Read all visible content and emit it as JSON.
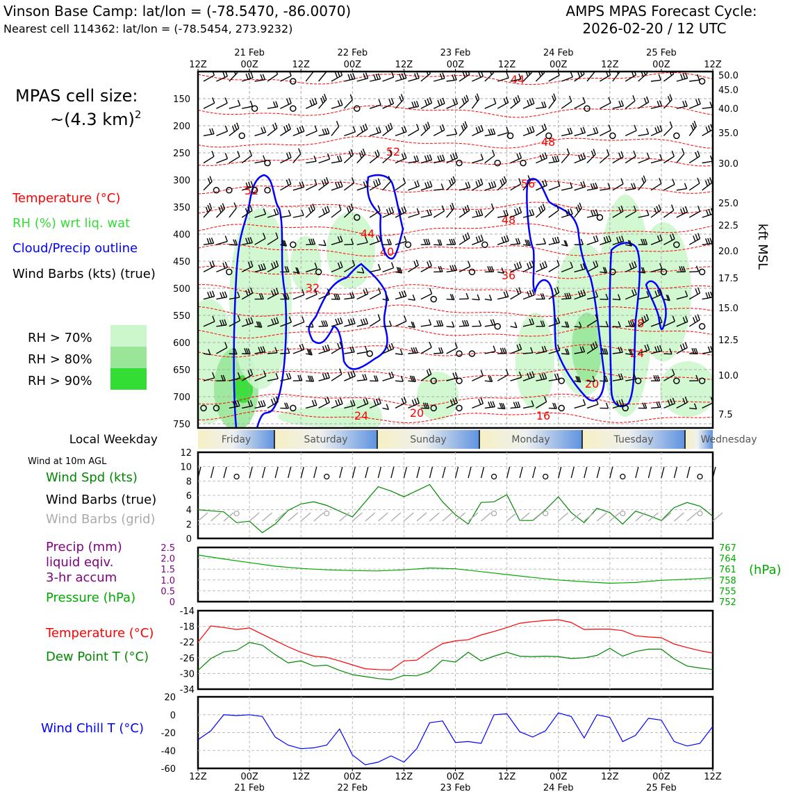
{
  "header": {
    "title_left": "Vinson Base Camp: lat/lon = (-78.5470, -86.0070)",
    "subtitle_left": "Nearest cell 114362: lat/lon = (-78.5454, 273.9232)",
    "title_right_1": "AMPS MPAS Forecast Cycle:",
    "title_right_2": "2026-02-20 / 12 UTC"
  },
  "time_axis": {
    "top_labels": [
      "12Z",
      "21 Feb\n00Z",
      "12Z",
      "22 Feb\n00Z",
      "12Z",
      "23 Feb\n00Z",
      "12Z",
      "24 Feb\n00Z",
      "12Z",
      "25 Feb\n00Z",
      "12Z"
    ],
    "bottom_labels": [
      "12Z",
      "00Z\n21 Feb",
      "12Z",
      "00Z\n22 Feb",
      "12Z",
      "00Z\n23 Feb",
      "12Z",
      "00Z\n24 Feb",
      "12Z",
      "00Z\n25 Feb",
      "12Z"
    ]
  },
  "legend": {
    "cell_size_line1": "MPAS cell size:",
    "cell_size_line2": "~(4.3 km)",
    "cell_size_sup": "2",
    "temperature": "Temperature (°C)",
    "rh": "RH (%) wrt liq. wat",
    "cloud": "Cloud/Precip outline",
    "wind": "Wind Barbs (kts) (true)",
    "rh70": "RH > 70%",
    "rh80": "RH > 80%",
    "rh90": "RH > 90%",
    "colors": {
      "temp": "#ff0000",
      "rh": "#33cc33",
      "cloud": "#0000ff",
      "rh70": "#ccf7cc",
      "rh80": "#99e699",
      "rh90": "#33dd33"
    }
  },
  "weekday_strip": {
    "label": "Local Weekday",
    "days": [
      "Friday",
      "Saturday",
      "Sunday",
      "Monday",
      "Tuesday",
      "Wednesday"
    ]
  },
  "surface_labels": {
    "wind10m": "Wind at 10m AGL",
    "wind_spd": "Wind Spd (kts)",
    "barbs_true": "Wind Barbs (true)",
    "barbs_grid": "Wind Barbs (grid)",
    "precip1": "Precip (mm)",
    "precip2": "liquid eqiv.",
    "precip3": "3-hr accum",
    "pressure": "Pressure (hPa)",
    "pressure_unit": "(hPa)",
    "temperature": "Temperature (°C)",
    "dewpoint": "Dew Point T (°C)",
    "windchill": "Wind Chill T (°C)"
  },
  "chart_data": [
    {
      "type": "heatmap",
      "name": "cross-section",
      "y_left_label": "hPa",
      "y_left_ticks": [
        "150",
        "200",
        "250",
        "300",
        "350",
        "400",
        "450",
        "500",
        "550",
        "600",
        "650",
        "700",
        "750"
      ],
      "y_right_label": "kft MSL",
      "y_right_ticks": [
        "50.0",
        "45.0",
        "40.0",
        "35.0",
        "30.0",
        "25.0",
        "22.5",
        "20.0",
        "17.5",
        "15.0",
        "12.5",
        "10.0",
        "7.5"
      ],
      "temperature_contour_labels": [
        "44",
        "48",
        "52",
        "52",
        "56",
        "48",
        "44",
        "40",
        "36",
        "32",
        "28",
        "24",
        "20",
        "24",
        "20",
        "16"
      ]
    },
    {
      "type": "line",
      "name": "wind-speed",
      "ylim": [
        0,
        12
      ],
      "y_ticks": [
        "0",
        "2",
        "4",
        "6",
        "8",
        "10",
        "12"
      ],
      "x_hours": [
        0,
        6,
        9,
        12,
        15,
        18,
        21,
        24,
        27,
        30,
        36,
        42,
        45,
        48,
        54,
        57,
        60,
        63,
        66,
        69,
        72,
        75,
        78,
        81,
        84,
        87,
        90,
        93,
        96,
        99,
        102,
        105,
        108,
        111,
        114,
        117,
        120
      ],
      "values": [
        4.0,
        3.7,
        2.2,
        2.4,
        0.8,
        2.0,
        3.9,
        4.8,
        5.1,
        4.6,
        3.0,
        7.2,
        6.6,
        5.8,
        7.5,
        5.1,
        3.3,
        2.0,
        5.0,
        5.1,
        6.1,
        2.5,
        2.5,
        4.0,
        5.8,
        3.6,
        2.2,
        4.2,
        3.6,
        2.0,
        3.8,
        3.2,
        2.5,
        4.3,
        5.0,
        4.5,
        3.1
      ]
    },
    {
      "type": "line",
      "name": "pressure",
      "ylim": [
        752,
        767
      ],
      "y_ticks_right": [
        "767",
        "764",
        "761",
        "758",
        "755",
        "752"
      ],
      "precip_ticks": [
        "2.5",
        "2.0",
        "1.5",
        "1.0",
        "0.5",
        "0"
      ],
      "x_hours": [
        0,
        6,
        12,
        18,
        24,
        30,
        36,
        42,
        48,
        54,
        60,
        66,
        72,
        78,
        84,
        90,
        96,
        102,
        108,
        114,
        120
      ],
      "values": [
        764.9,
        763.8,
        762.8,
        761.8,
        761.2,
        760.8,
        760.6,
        760.5,
        760.8,
        761.3,
        761.1,
        760.3,
        759.5,
        758.7,
        758.0,
        757.5,
        757.1,
        757.3,
        757.9,
        758.2,
        758.6
      ]
    },
    {
      "type": "line",
      "name": "temperature-dewpoint",
      "ylim": [
        -34,
        -14
      ],
      "y_ticks": [
        "-14",
        "-18",
        "-22",
        "-26",
        "-30",
        "-34"
      ],
      "x_hours": [
        0,
        3,
        6,
        9,
        12,
        15,
        18,
        21,
        24,
        27,
        30,
        33,
        36,
        39,
        42,
        45,
        48,
        51,
        54,
        57,
        60,
        63,
        66,
        69,
        72,
        75,
        78,
        81,
        84,
        87,
        90,
        93,
        96,
        99,
        102,
        105,
        108,
        111,
        114,
        117,
        120
      ],
      "series": [
        {
          "name": "Temperature (°C)",
          "color": "#ff0000",
          "values": [
            -22.0,
            -17.9,
            -18.3,
            -18.8,
            -18.4,
            -20.0,
            -21.6,
            -23.2,
            -24.6,
            -25.6,
            -25.9,
            -26.8,
            -27.8,
            -28.8,
            -29.0,
            -29.1,
            -26.8,
            -26.6,
            -24.3,
            -22.4,
            -21.7,
            -21.4,
            -20.2,
            -19.3,
            -18.3,
            -17.2,
            -16.8,
            -16.5,
            -16.3,
            -17.0,
            -18.8,
            -18.7,
            -18.7,
            -19.1,
            -20.4,
            -20.7,
            -20.9,
            -22.5,
            -23.4,
            -24.2,
            -24.8
          ]
        },
        {
          "name": "Dew Point T (°C)",
          "color": "#008800",
          "values": [
            -29.2,
            -26.2,
            -24.5,
            -24.1,
            -22.1,
            -22.8,
            -25.2,
            -27.3,
            -26.8,
            -28.1,
            -27.9,
            -29.2,
            -30.3,
            -30.8,
            -31.3,
            -31.6,
            -30.5,
            -30.6,
            -29.5,
            -26.6,
            -27.1,
            -24.6,
            -26.8,
            -25.6,
            -24.6,
            -25.6,
            -25.7,
            -25.6,
            -25.7,
            -26.2,
            -26.0,
            -25.4,
            -23.6,
            -25.6,
            -24.4,
            -23.8,
            -23.8,
            -26.3,
            -28.1,
            -28.6,
            -29.0
          ]
        }
      ]
    },
    {
      "type": "line",
      "name": "wind-chill",
      "ylim": [
        -60,
        20
      ],
      "y_ticks": [
        "20",
        "0",
        "-20",
        "-40",
        "-60"
      ],
      "x_hours": [
        0,
        3,
        6,
        9,
        12,
        15,
        18,
        21,
        24,
        27,
        30,
        33,
        36,
        39,
        42,
        45,
        48,
        51,
        54,
        57,
        60,
        63,
        66,
        69,
        72,
        75,
        78,
        81,
        84,
        87,
        90,
        93,
        96,
        99,
        102,
        105,
        108,
        111,
        114,
        117,
        120
      ],
      "values": [
        -28,
        -18,
        0,
        -1,
        0,
        -2,
        -25,
        -34,
        -38,
        -37,
        -34,
        -16,
        -45,
        -56,
        -53,
        -46,
        -53,
        -38,
        -9,
        -7,
        -31,
        -30,
        -32,
        0,
        1,
        -19,
        -25,
        -18,
        2,
        -2,
        -26,
        0,
        -3,
        -30,
        -23,
        -4,
        -6,
        -30,
        -35,
        -32,
        -13
      ]
    }
  ]
}
